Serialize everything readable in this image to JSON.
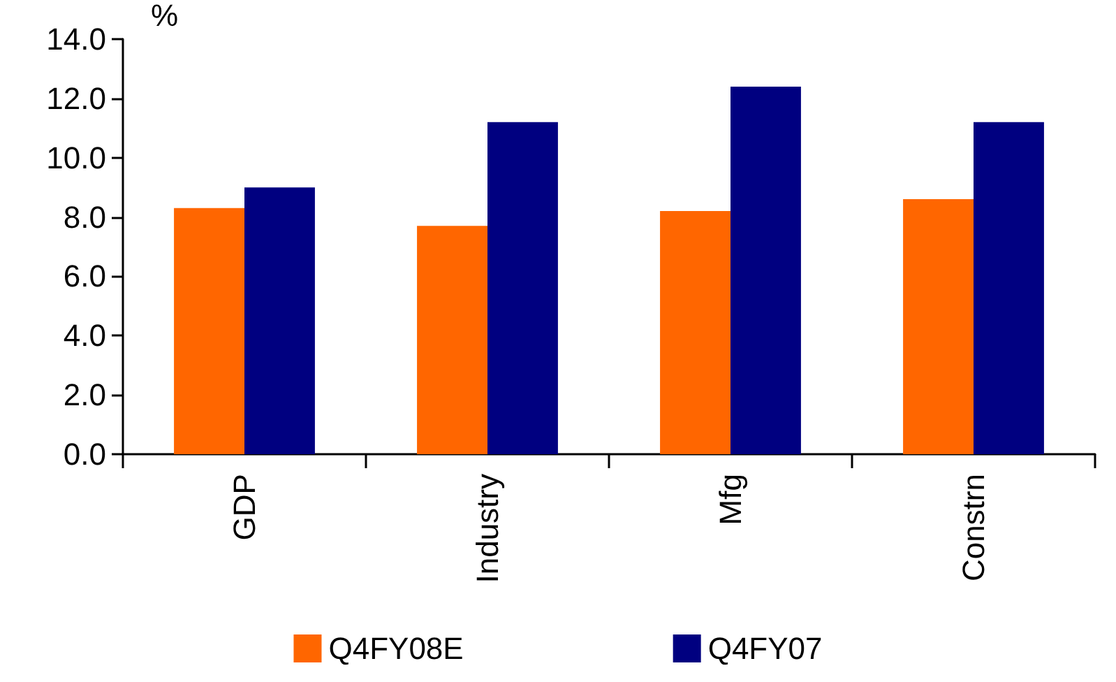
{
  "chart_data": {
    "type": "bar",
    "ylabel": "%",
    "categories": [
      "GDP",
      "Industry",
      "Mfg",
      "Constrn"
    ],
    "series": [
      {
        "name": "Q4FY08E",
        "color": "#ff6600",
        "values": [
          8.3,
          7.7,
          8.2,
          8.6
        ]
      },
      {
        "name": "Q4FY07",
        "color": "#000080",
        "values": [
          9.0,
          11.2,
          12.4,
          11.2
        ]
      }
    ],
    "ylim": [
      0,
      14
    ],
    "yticks": [
      {
        "value": 0,
        "label": "0.0"
      },
      {
        "value": 2,
        "label": "2.0"
      },
      {
        "value": 4,
        "label": "4.0"
      },
      {
        "value": 6,
        "label": "6.0"
      },
      {
        "value": 8,
        "label": "8.0"
      },
      {
        "value": 10,
        "label": "10.0"
      },
      {
        "value": 12,
        "label": "12.0"
      },
      {
        "value": 14,
        "label": "14.0"
      }
    ],
    "grid": false,
    "legend": "bottom"
  }
}
